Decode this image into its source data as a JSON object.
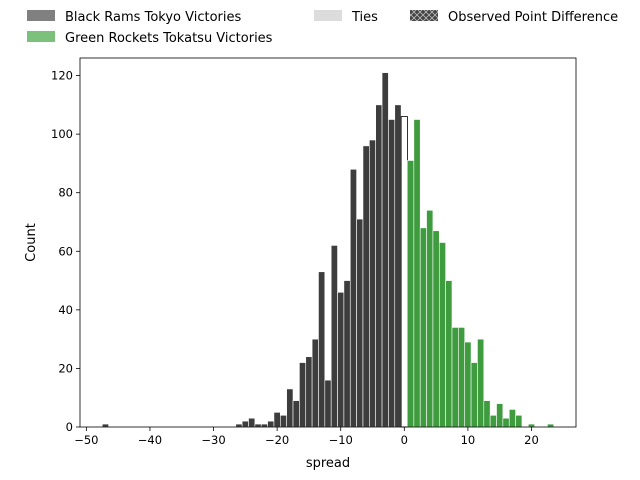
{
  "chart_data": {
    "type": "bar",
    "xlabel": "spread",
    "ylabel": "Count",
    "xlim": [
      -51,
      27
    ],
    "ylim": [
      0,
      126
    ],
    "x_ticks": [
      -50,
      -40,
      -30,
      -20,
      -10,
      0,
      10,
      20
    ],
    "x_tick_labels": [
      "−50",
      "−40",
      "−30",
      "−20",
      "−10",
      "0",
      "10",
      "20"
    ],
    "y_ticks": [
      0,
      20,
      40,
      60,
      80,
      100,
      120
    ],
    "y_tick_labels": [
      "0",
      "20",
      "40",
      "60",
      "80",
      "100",
      "120"
    ],
    "grid": false,
    "legend_position": "top, above plot",
    "legend": [
      {
        "label": "Black Rams Tokyo Victories",
        "color": "#808080"
      },
      {
        "label": "Green Rockets Tokatsu Victories",
        "color": "#7bc17b"
      },
      {
        "label": "Ties",
        "color": "#dcdcdc"
      },
      {
        "label": "Observed Point Difference",
        "color": "#444444",
        "hatch": "x"
      }
    ],
    "series": [
      {
        "name": "Black Rams Tokyo Victories",
        "color": "#3d3d3d",
        "bin_width": 1,
        "x": [
          -47,
          -26,
          -25,
          -24,
          -23,
          -22,
          -21,
          -20,
          -19,
          -18,
          -17,
          -16,
          -15,
          -14,
          -13,
          -12,
          -11,
          -10,
          -9,
          -8,
          -7,
          -6,
          -5,
          -4,
          -3,
          -2,
          -1
        ],
        "values": [
          1,
          1,
          2,
          3,
          1,
          1,
          2,
          5,
          4,
          13,
          9,
          22,
          24,
          30,
          53,
          16,
          62,
          46,
          50,
          88,
          71,
          96,
          98,
          110,
          121,
          105,
          110
        ]
      },
      {
        "name": "Ties",
        "color": "#ffffff",
        "bin_width": 1,
        "x": [
          0
        ],
        "values": [
          106
        ]
      },
      {
        "name": "Green Rockets Tokatsu Victories",
        "color": "#3e9c3e",
        "bin_width": 1,
        "x": [
          1,
          2,
          3,
          4,
          5,
          6,
          7,
          8,
          9,
          10,
          11,
          12,
          13,
          14,
          15,
          16,
          17,
          18,
          20,
          23
        ],
        "values": [
          91,
          105,
          68,
          74,
          67,
          63,
          50,
          34,
          34,
          29,
          22,
          30,
          9,
          4,
          8,
          3,
          6,
          4,
          1,
          1
        ]
      }
    ]
  }
}
